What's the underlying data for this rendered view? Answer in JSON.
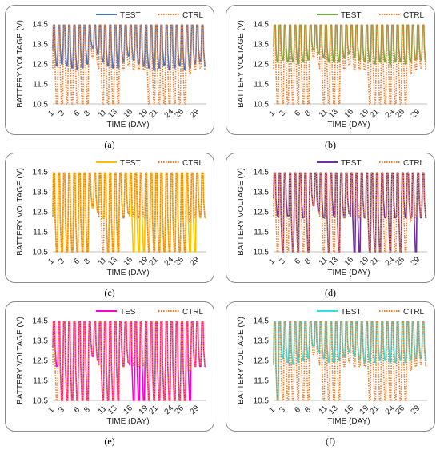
{
  "chart_data": [
    {
      "type": "line",
      "panel_label": "(a)",
      "xlabel": "TIME (DAY)",
      "ylabel": "BATTERY VOLTAGE (V)",
      "ylim": [
        10.5,
        14.5
      ],
      "xlim": [
        1,
        31
      ],
      "y_ticks": [
        "14.5",
        "13.5",
        "12.5",
        "11.5",
        "10.5"
      ],
      "x_ticks": [
        "1",
        "3",
        "6",
        "8",
        "11",
        "13",
        "16",
        "19",
        "21",
        "24",
        "26",
        "29"
      ],
      "legend_position": "top",
      "series": [
        {
          "name": "TEST",
          "color": "#4472c4",
          "style": "solid",
          "cycle_high": 14.45,
          "cycle_low": 12.4,
          "daily_low": [
            12.4,
            12.5,
            12.4,
            12.3,
            12.2,
            12.3,
            12.5,
            13.3,
            13.0,
            12.6,
            12.4,
            12.3,
            12.3,
            12.6,
            12.9,
            12.7,
            12.5,
            12.4,
            12.3,
            12.2,
            12.3,
            12.4,
            12.2,
            12.3,
            12.4,
            12.2,
            12.3,
            12.5,
            12.6,
            12.4
          ]
        },
        {
          "name": "CTRL",
          "color": "#ed7d31",
          "style": "dotted",
          "cycle_high": 14.45,
          "cycle_low": 12.2,
          "daily_low": [
            10.5,
            10.5,
            10.5,
            10.5,
            10.5,
            10.5,
            10.5,
            12.8,
            12.5,
            10.5,
            10.5,
            10.5,
            10.5,
            12.2,
            12.4,
            12.2,
            12.2,
            12.2,
            10.5,
            10.5,
            10.5,
            10.5,
            10.5,
            10.5,
            10.5,
            10.5,
            12.0,
            12.2,
            12.3,
            12.2
          ]
        }
      ]
    },
    {
      "type": "line",
      "panel_label": "(b)",
      "xlabel": "TIME (DAY)",
      "ylabel": "BATTERY VOLTAGE (V)",
      "ylim": [
        10.5,
        14.5
      ],
      "xlim": [
        1,
        31
      ],
      "y_ticks": [
        "14.5",
        "13.5",
        "12.5",
        "11.5",
        "10.5"
      ],
      "x_ticks": [
        "1",
        "3",
        "6",
        "8",
        "11",
        "13",
        "16",
        "19",
        "21",
        "24",
        "26",
        "29"
      ],
      "legend_position": "top",
      "series": [
        {
          "name": "TEST",
          "color": "#70ad47",
          "style": "solid",
          "cycle_high": 14.45,
          "cycle_low": 12.6,
          "daily_low": [
            12.6,
            12.7,
            12.6,
            12.6,
            12.5,
            12.6,
            12.7,
            13.2,
            13.0,
            12.8,
            12.6,
            12.6,
            12.6,
            12.8,
            13.0,
            12.8,
            12.7,
            12.6,
            12.6,
            12.5,
            12.6,
            12.6,
            12.5,
            12.6,
            12.6,
            12.5,
            12.6,
            12.7,
            12.7,
            12.6
          ]
        },
        {
          "name": "CTRL",
          "color": "#ed7d31",
          "style": "dotted",
          "cycle_high": 14.45,
          "cycle_low": 12.2,
          "daily_low": [
            10.5,
            10.5,
            10.5,
            10.5,
            10.5,
            10.5,
            10.5,
            12.8,
            12.5,
            10.5,
            10.5,
            10.5,
            10.5,
            12.2,
            12.4,
            12.2,
            12.2,
            12.2,
            10.5,
            10.5,
            10.5,
            10.5,
            10.5,
            10.5,
            10.5,
            10.5,
            12.0,
            12.2,
            12.3,
            12.2
          ]
        }
      ]
    },
    {
      "type": "line",
      "panel_label": "(c)",
      "xlabel": "TIME (DAY)",
      "ylabel": "BATTERY VOLTAGE (V)",
      "ylim": [
        10.5,
        14.5
      ],
      "xlim": [
        1,
        31
      ],
      "y_ticks": [
        "14.5",
        "13.5",
        "12.5",
        "11.5",
        "10.5"
      ],
      "x_ticks": [
        "1",
        "3",
        "6",
        "8",
        "11",
        "13",
        "16",
        "19",
        "21",
        "24",
        "26",
        "29"
      ],
      "legend_position": "top",
      "series": [
        {
          "name": "TEST",
          "color": "#ffc000",
          "style": "solid",
          "cycle_high": 14.45,
          "cycle_low": 12.2,
          "daily_low": [
            10.5,
            10.5,
            10.5,
            10.5,
            10.5,
            10.5,
            10.5,
            12.7,
            12.5,
            12.2,
            10.5,
            10.5,
            10.5,
            12.2,
            12.4,
            10.5,
            10.5,
            10.5,
            10.5,
            10.5,
            10.5,
            10.5,
            10.5,
            10.5,
            10.5,
            10.5,
            10.5,
            10.5,
            12.2,
            12.2
          ]
        },
        {
          "name": "CTRL",
          "color": "#ed7d31",
          "style": "dotted",
          "cycle_high": 14.45,
          "cycle_low": 12.2,
          "daily_low": [
            10.5,
            10.5,
            10.5,
            10.5,
            10.5,
            10.5,
            10.5,
            12.8,
            12.5,
            10.5,
            10.5,
            10.5,
            10.5,
            12.2,
            12.4,
            12.2,
            12.2,
            12.2,
            10.5,
            10.5,
            10.5,
            10.5,
            10.5,
            10.5,
            10.5,
            10.5,
            12.0,
            12.2,
            12.3,
            12.2
          ]
        }
      ]
    },
    {
      "type": "line",
      "panel_label": "(d)",
      "xlabel": "TIME (DAY)",
      "ylabel": "BATTERY VOLTAGE (V)",
      "ylim": [
        10.5,
        14.5
      ],
      "xlim": [
        1,
        31
      ],
      "y_ticks": [
        "14.5",
        "13.5",
        "12.5",
        "11.5",
        "10.5"
      ],
      "x_ticks": [
        "1",
        "3",
        "6",
        "8",
        "11",
        "13",
        "16",
        "19",
        "21",
        "24",
        "26",
        "29"
      ],
      "legend_position": "top",
      "series": [
        {
          "name": "TEST",
          "color": "#7030a0",
          "style": "solid",
          "cycle_high": 14.45,
          "cycle_low": 12.2,
          "daily_low": [
            12.3,
            10.5,
            12.3,
            10.5,
            10.5,
            12.2,
            10.5,
            12.8,
            12.5,
            12.2,
            10.5,
            12.3,
            10.5,
            12.2,
            12.4,
            10.5,
            10.5,
            12.2,
            10.5,
            10.5,
            10.5,
            12.2,
            10.5,
            12.2,
            10.5,
            12.2,
            12.2,
            10.5,
            12.2,
            12.2
          ]
        },
        {
          "name": "CTRL",
          "color": "#ed7d31",
          "style": "dotted",
          "cycle_high": 14.45,
          "cycle_low": 12.2,
          "daily_low": [
            10.5,
            10.5,
            10.5,
            10.5,
            10.5,
            10.5,
            10.5,
            12.8,
            12.5,
            10.5,
            10.5,
            10.5,
            10.5,
            12.2,
            12.4,
            12.2,
            12.2,
            12.2,
            10.5,
            10.5,
            10.5,
            10.5,
            10.5,
            10.5,
            10.5,
            10.5,
            12.0,
            12.2,
            12.3,
            12.2
          ]
        }
      ]
    },
    {
      "type": "line",
      "panel_label": "(e)",
      "xlabel": "TIME (DAY)",
      "ylabel": "BATTERY VOLTAGE (V)",
      "ylim": [
        10.5,
        14.5
      ],
      "xlim": [
        1,
        31
      ],
      "y_ticks": [
        "14.5",
        "13.5",
        "12.5",
        "11.5",
        "10.5"
      ],
      "x_ticks": [
        "1",
        "3",
        "6",
        "8",
        "11",
        "13",
        "16",
        "19",
        "21",
        "24",
        "26",
        "29"
      ],
      "legend_position": "top",
      "series": [
        {
          "name": "TEST",
          "color": "#ff00cc",
          "style": "solid",
          "cycle_high": 14.45,
          "cycle_low": 12.2,
          "daily_low": [
            12.2,
            10.5,
            10.5,
            10.5,
            10.5,
            10.5,
            10.5,
            12.7,
            12.5,
            10.5,
            10.5,
            10.5,
            10.5,
            12.2,
            12.4,
            10.5,
            10.5,
            10.5,
            10.5,
            10.5,
            10.5,
            10.5,
            10.5,
            10.5,
            10.5,
            10.5,
            10.5,
            12.2,
            12.2,
            12.2
          ]
        },
        {
          "name": "CTRL",
          "color": "#ed7d31",
          "style": "dotted",
          "cycle_high": 14.45,
          "cycle_low": 12.2,
          "daily_low": [
            10.5,
            10.5,
            10.5,
            10.5,
            10.5,
            10.5,
            10.5,
            12.8,
            12.5,
            10.5,
            10.5,
            10.5,
            10.5,
            12.2,
            12.4,
            12.2,
            12.2,
            12.2,
            10.5,
            10.5,
            10.5,
            10.5,
            10.5,
            10.5,
            10.5,
            10.5,
            12.0,
            12.2,
            12.3,
            12.2
          ]
        }
      ]
    },
    {
      "type": "line",
      "panel_label": "(f)",
      "xlabel": "TIME (DAY)",
      "ylabel": "BATTERY VOLTAGE (V)",
      "ylim": [
        10.5,
        14.5
      ],
      "xlim": [
        1,
        31
      ],
      "y_ticks": [
        "14.5",
        "13.5",
        "12.5",
        "11.5",
        "10.5"
      ],
      "x_ticks": [
        "1",
        "3",
        "6",
        "8",
        "11",
        "13",
        "16",
        "19",
        "21",
        "24",
        "26",
        "29"
      ],
      "legend_position": "top",
      "series": [
        {
          "name": "TEST",
          "color": "#33e0e0",
          "style": "solid",
          "cycle_high": 14.45,
          "cycle_low": 12.4,
          "daily_low": [
            10.5,
            12.6,
            12.4,
            12.3,
            12.4,
            12.5,
            12.6,
            13.2,
            12.9,
            12.6,
            12.4,
            12.4,
            12.5,
            12.7,
            12.9,
            12.7,
            12.5,
            12.4,
            12.4,
            12.4,
            12.5,
            12.5,
            12.4,
            12.4,
            12.5,
            12.4,
            12.5,
            12.6,
            12.6,
            12.5
          ]
        },
        {
          "name": "CTRL",
          "color": "#ed7d31",
          "style": "dotted",
          "cycle_high": 14.45,
          "cycle_low": 12.2,
          "daily_low": [
            10.5,
            10.5,
            10.5,
            10.5,
            10.5,
            10.5,
            10.5,
            12.8,
            12.5,
            10.5,
            10.5,
            10.5,
            10.5,
            12.2,
            12.4,
            12.2,
            12.2,
            12.2,
            10.5,
            10.5,
            10.5,
            10.5,
            10.5,
            10.5,
            10.5,
            10.5,
            12.0,
            12.2,
            12.3,
            12.2
          ]
        }
      ]
    }
  ]
}
